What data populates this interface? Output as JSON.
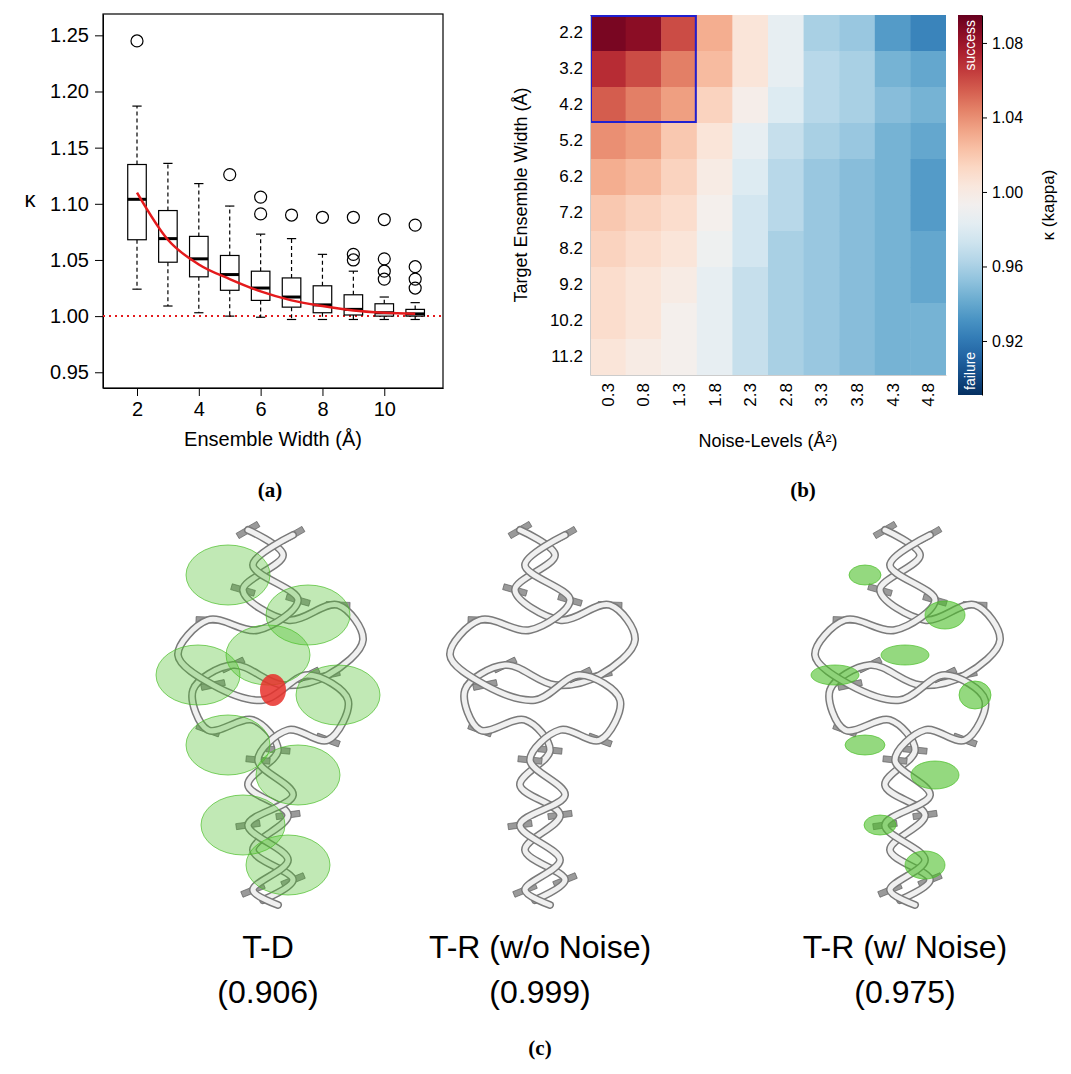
{
  "figure": {
    "panel_labels": [
      "(a)",
      "(b)",
      "(c)"
    ]
  },
  "chart_data": [
    {
      "type": "box",
      "x_label": "Ensemble Width (Å)",
      "y_label": "κ",
      "x": [
        2,
        3,
        4,
        5,
        6,
        7,
        8,
        9,
        10,
        11
      ],
      "boxes": [
        {
          "low": 1.024,
          "q1": 1.068,
          "median": 1.104,
          "q3": 1.135,
          "high": 1.187,
          "outliers": [
            1.245
          ]
        },
        {
          "low": 1.009,
          "q1": 1.048,
          "median": 1.069,
          "q3": 1.094,
          "high": 1.136,
          "outliers": []
        },
        {
          "low": 1.003,
          "q1": 1.035,
          "median": 1.051,
          "q3": 1.071,
          "high": 1.118,
          "outliers": []
        },
        {
          "low": 1.0,
          "q1": 1.023,
          "median": 1.037,
          "q3": 1.054,
          "high": 1.098,
          "outliers": [
            1.126
          ]
        },
        {
          "low": 0.999,
          "q1": 1.014,
          "median": 1.025,
          "q3": 1.04,
          "high": 1.073,
          "outliers": [
            1.106,
            1.091
          ]
        },
        {
          "low": 0.997,
          "q1": 1.008,
          "median": 1.017,
          "q3": 1.034,
          "high": 1.069,
          "outliers": [
            1.09
          ]
        },
        {
          "low": 0.997,
          "q1": 1.003,
          "median": 1.01,
          "q3": 1.027,
          "high": 1.055,
          "outliers": [
            1.088
          ]
        },
        {
          "low": 0.997,
          "q1": 1.001,
          "median": 1.006,
          "q3": 1.019,
          "high": 1.04,
          "outliers": [
            1.088,
            1.055,
            1.05
          ]
        },
        {
          "low": 0.997,
          "q1": 1.0,
          "median": 1.003,
          "q3": 1.011,
          "high": 1.017,
          "outliers": [
            1.086,
            1.051,
            1.04,
            1.033
          ]
        },
        {
          "low": 0.997,
          "q1": 1.0,
          "median": 1.002,
          "q3": 1.006,
          "high": 1.012,
          "outliers": [
            1.081,
            1.044,
            1.033,
            1.025
          ]
        }
      ],
      "color": "#000000",
      "fit": {
        "color": "#e41a1c",
        "values": [
          1.11,
          1.068,
          1.046,
          1.033,
          1.022,
          1.014,
          1.009,
          1.005,
          1.003,
          1.002
        ]
      },
      "reference_line": {
        "value": 1,
        "color": "#e41a1c",
        "line_style": "dotted"
      },
      "xlim": [
        0.9,
        11.9
      ],
      "xticks": [
        2,
        4,
        6,
        8,
        10
      ],
      "ylim": [
        0.936,
        1.269
      ],
      "yticks": [
        0.95,
        {
          "value": 1,
          "label": "1.00"
        },
        1.05,
        {
          "value": 1.1,
          "label": "1.10"
        },
        1.15,
        {
          "value": 1.2,
          "label": "1.20"
        },
        1.25
      ]
    },
    {
      "type": "heatmap",
      "x_label": "Noise-Levels (Å²)",
      "y_label": "Target Ensemble Width (Å)",
      "x": [
        0.3,
        0.8,
        1.3,
        1.8,
        2.3,
        2.8,
        3.3,
        3.8,
        4.3,
        4.8
      ],
      "y": [
        2.2,
        3.2,
        4.2,
        5.2,
        6.2,
        7.2,
        8.2,
        9.2,
        10.2,
        11.2
      ],
      "values": [
        [
          1.09,
          1.085,
          1.06,
          1.03,
          1.005,
          0.985,
          0.96,
          0.955,
          0.935,
          0.925
        ],
        [
          1.07,
          1.06,
          1.045,
          1.025,
          1.005,
          0.985,
          0.965,
          0.96,
          0.945,
          0.94
        ],
        [
          1.055,
          1.045,
          1.035,
          1.015,
          0.997,
          0.98,
          0.965,
          0.96,
          0.95,
          0.945
        ],
        [
          1.04,
          1.035,
          1.02,
          1.005,
          0.985,
          0.97,
          0.96,
          0.955,
          0.945,
          0.94
        ],
        [
          1.03,
          1.025,
          1.015,
          1.0,
          0.98,
          0.965,
          0.955,
          0.95,
          0.945,
          0.935
        ],
        [
          1.02,
          1.015,
          1.01,
          0.995,
          0.975,
          0.965,
          0.955,
          0.95,
          0.945,
          0.935
        ],
        [
          1.015,
          1.01,
          1.005,
          0.99,
          0.975,
          0.96,
          0.955,
          0.95,
          0.945,
          0.94
        ],
        [
          1.01,
          1.005,
          1.0,
          0.985,
          0.97,
          0.96,
          0.955,
          0.95,
          0.945,
          0.94
        ],
        [
          1.01,
          1.005,
          0.995,
          0.985,
          0.97,
          0.96,
          0.955,
          0.95,
          0.945,
          0.945
        ],
        [
          1.005,
          1.0,
          0.995,
          0.985,
          0.97,
          0.96,
          0.955,
          0.95,
          0.945,
          0.945
        ]
      ],
      "colorbar": {
        "label": "κ (kappa)",
        "range": [
          0.891,
          1.095
        ],
        "ticks": [
          0.92,
          0.96,
          {
            "value": 1,
            "label": "1.00"
          },
          1.04,
          1.08
        ],
        "top_label": "success",
        "bottom_label": "failure"
      },
      "highlight": {
        "x": [
          0.3,
          1.3
        ],
        "y": [
          2.2,
          4.2
        ],
        "color": "#2020d0"
      }
    }
  ],
  "images": [
    {
      "caption": "T-D",
      "score": "(0.906)",
      "colors": [
        "#4cbf2a",
        "#e8302a"
      ]
    },
    {
      "caption": "T-R (w/o Noise)",
      "score": "(0.999)",
      "colors": []
    },
    {
      "caption": "T-R (w/ Noise)",
      "score": "(0.975)",
      "colors": [
        "#4cbf2a"
      ]
    }
  ]
}
